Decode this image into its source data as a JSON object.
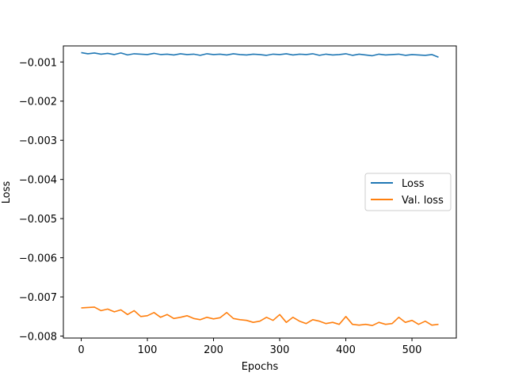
{
  "chart_data": {
    "type": "line",
    "title": "",
    "xlabel": "Epochs",
    "ylabel": "Loss",
    "xlim": [
      -27,
      567
    ],
    "ylim": [
      -0.00805,
      -0.00059
    ],
    "xticks": [
      0,
      100,
      200,
      300,
      400,
      500
    ],
    "xtick_labels": [
      "0",
      "100",
      "200",
      "300",
      "400",
      "500"
    ],
    "yticks": [
      -0.001,
      -0.002,
      -0.003,
      -0.004,
      -0.005,
      -0.006,
      -0.007,
      -0.008
    ],
    "ytick_labels": [
      "−0.001",
      "−0.002",
      "−0.003",
      "−0.004",
      "−0.005",
      "−0.006",
      "−0.007",
      "−0.008"
    ],
    "grid": false,
    "legend_position": "center-right",
    "x": [
      0,
      10,
      20,
      30,
      40,
      50,
      60,
      70,
      80,
      90,
      100,
      110,
      120,
      130,
      140,
      150,
      160,
      170,
      180,
      190,
      200,
      210,
      220,
      230,
      240,
      250,
      260,
      270,
      280,
      290,
      300,
      310,
      320,
      330,
      340,
      350,
      360,
      370,
      380,
      390,
      400,
      410,
      420,
      430,
      440,
      450,
      460,
      470,
      480,
      490,
      500,
      510,
      520,
      530,
      540
    ],
    "series": [
      {
        "name": "Loss",
        "color": "#1f77b4",
        "values": [
          -0.00076,
          -0.00079,
          -0.00077,
          -0.0008,
          -0.00078,
          -0.00081,
          -0.00077,
          -0.00082,
          -0.00079,
          -0.0008,
          -0.00081,
          -0.00078,
          -0.00081,
          -0.0008,
          -0.00082,
          -0.00079,
          -0.00081,
          -0.0008,
          -0.00083,
          -0.00079,
          -0.00081,
          -0.0008,
          -0.00082,
          -0.00079,
          -0.00081,
          -0.00082,
          -0.0008,
          -0.00081,
          -0.00083,
          -0.0008,
          -0.00081,
          -0.00079,
          -0.00082,
          -0.0008,
          -0.00081,
          -0.00079,
          -0.00083,
          -0.0008,
          -0.00082,
          -0.00081,
          -0.00079,
          -0.00083,
          -0.0008,
          -0.00082,
          -0.00084,
          -0.0008,
          -0.00082,
          -0.00081,
          -0.0008,
          -0.00083,
          -0.00081,
          -0.00082,
          -0.00083,
          -0.00081,
          -0.00088
        ]
      },
      {
        "name": "Val. loss",
        "color": "#ff7f0e",
        "values": [
          -0.00728,
          -0.00727,
          -0.00726,
          -0.00735,
          -0.00731,
          -0.00738,
          -0.00733,
          -0.00745,
          -0.00735,
          -0.0075,
          -0.00748,
          -0.0074,
          -0.00752,
          -0.00745,
          -0.00755,
          -0.00752,
          -0.00748,
          -0.00755,
          -0.00758,
          -0.00752,
          -0.00756,
          -0.00753,
          -0.0074,
          -0.00755,
          -0.00758,
          -0.0076,
          -0.00765,
          -0.00762,
          -0.00752,
          -0.0076,
          -0.00745,
          -0.00765,
          -0.00752,
          -0.00762,
          -0.00768,
          -0.00758,
          -0.00762,
          -0.00768,
          -0.00765,
          -0.0077,
          -0.0075,
          -0.0077,
          -0.00772,
          -0.0077,
          -0.00773,
          -0.00765,
          -0.0077,
          -0.00768,
          -0.00752,
          -0.00765,
          -0.0076,
          -0.0077,
          -0.00762,
          -0.00772,
          -0.0077
        ]
      }
    ]
  }
}
